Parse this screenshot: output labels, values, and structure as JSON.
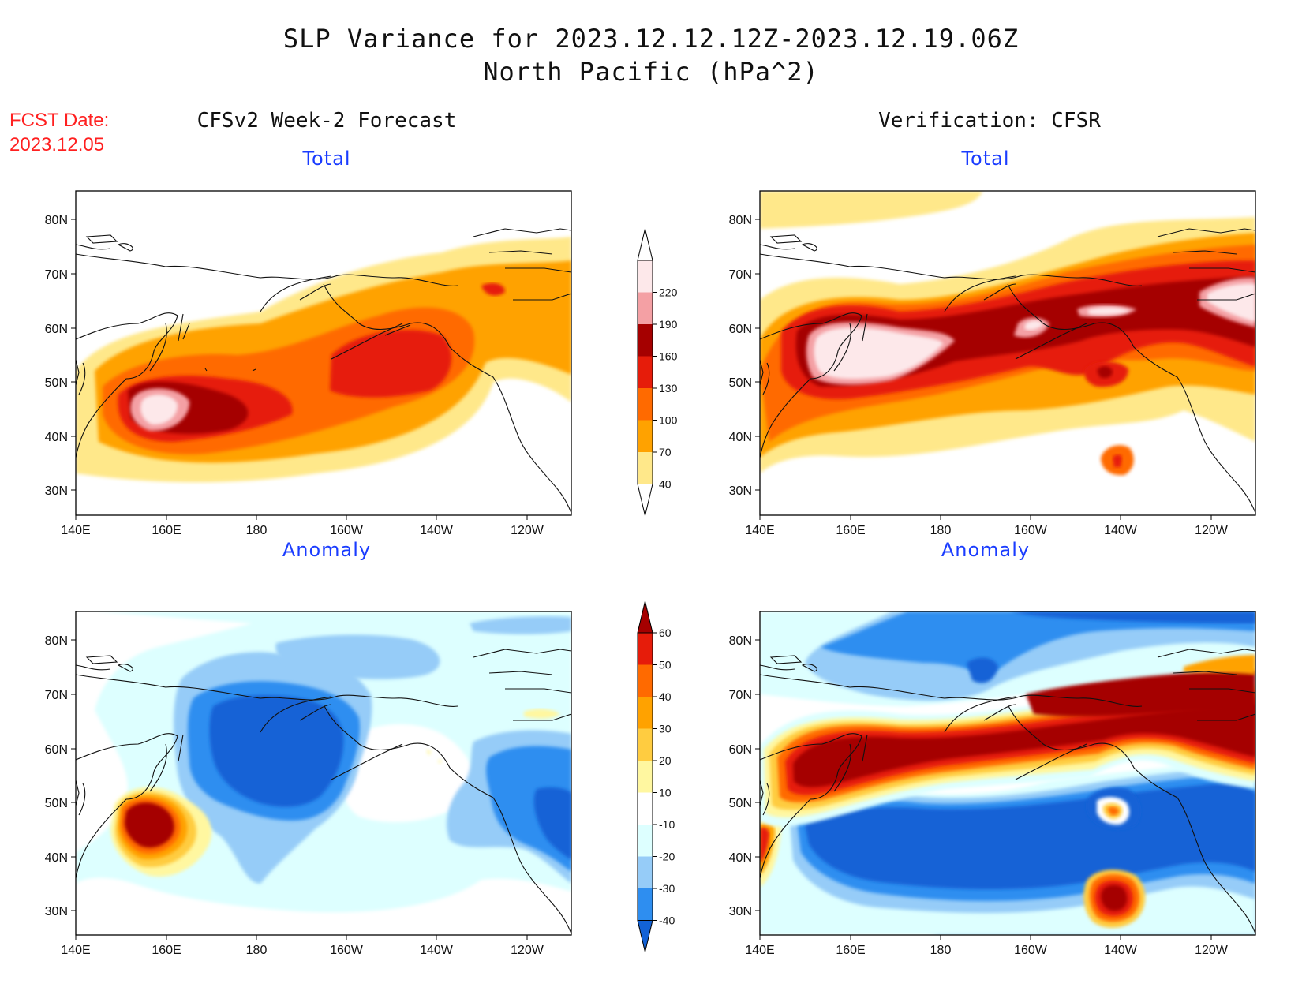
{
  "header": {
    "title_line1": "SLP Variance for 2023.12.12.12Z-2023.12.19.06Z",
    "title_line2": "North Pacific (hPa^2)"
  },
  "forecast_date": {
    "label": "FCST Date:",
    "value": "2023.12.05"
  },
  "columns": {
    "left": "CFSv2 Week-2 Forecast",
    "right": "Verification: CFSR"
  },
  "panels": [
    {
      "id": "fcst-total",
      "subtitle": "Total"
    },
    {
      "id": "verif-total",
      "subtitle": "Total"
    },
    {
      "id": "fcst-anomaly",
      "subtitle": "Anomaly"
    },
    {
      "id": "verif-anomaly",
      "subtitle": "Anomaly"
    }
  ],
  "axes": {
    "lat_labels": [
      "80N",
      "70N",
      "60N",
      "50N",
      "40N",
      "30N"
    ],
    "lon_labels": [
      "140E",
      "160E",
      "180",
      "160W",
      "140W",
      "120W"
    ]
  },
  "colorbars": {
    "total": {
      "labels": [
        "40",
        "70",
        "100",
        "130",
        "160",
        "190",
        "220"
      ],
      "colors": [
        "#ffe88a",
        "#ffa200",
        "#ff6a00",
        "#e61c0a",
        "#a50000",
        "#f4a0a4",
        "#fde8ea"
      ]
    },
    "anomaly": {
      "labels": [
        "-40",
        "-30",
        "-20",
        "-10",
        "10",
        "20",
        "30",
        "40",
        "50",
        "60"
      ],
      "colors": [
        "#1262d6",
        "#2e8ef0",
        "#96ccf8",
        "#ddffff",
        "#ffffff",
        "#fff7a0",
        "#ffcc40",
        "#ffa200",
        "#ff6a00",
        "#e61c0a",
        "#a50000"
      ]
    }
  }
}
